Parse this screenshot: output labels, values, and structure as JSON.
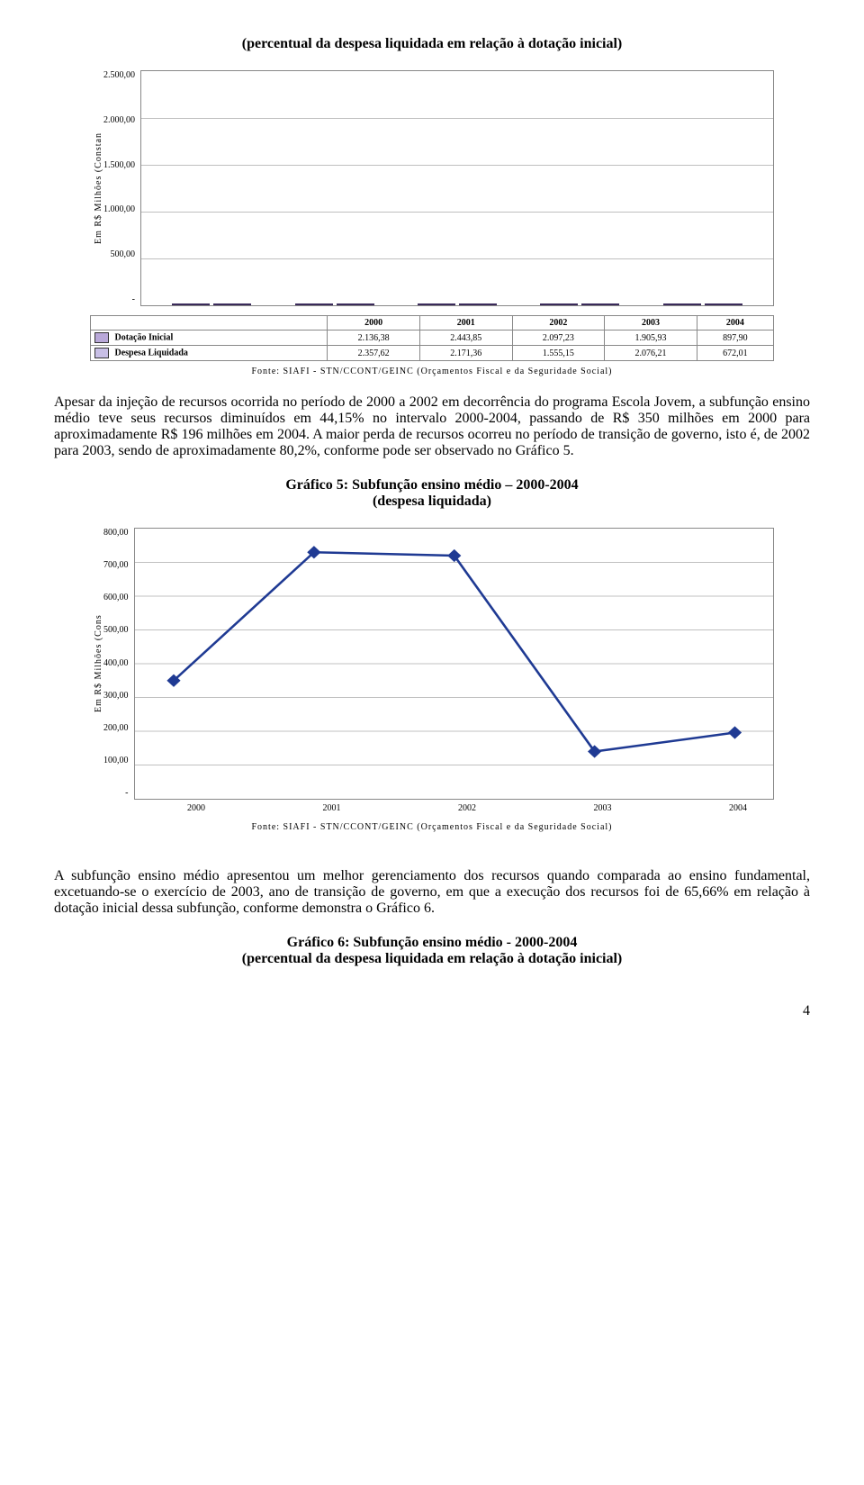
{
  "chart1": {
    "title": "(percentual da despesa liquidada em relação à dotação inicial)",
    "type": "bar",
    "y_axis_label": "Em R$ Milhões (Constan",
    "categories": [
      "2000",
      "2001",
      "2002",
      "2003",
      "2004"
    ],
    "series": [
      {
        "name": "Dotação Inicial",
        "color_light": "#b9a8d9",
        "color_dark": "#8c7bb8",
        "values": [
          "2.136,38",
          "2.443,85",
          "2.097,23",
          "1.905,93",
          "897,90"
        ],
        "numeric": [
          2136.38,
          2443.85,
          2097.23,
          1905.93,
          897.9
        ]
      },
      {
        "name": "Despesa Liquidada",
        "color_light": "#c8bfe6",
        "color_dark": "#9d91c9",
        "values": [
          "2.357,62",
          "2.171,36",
          "1.555,15",
          "2.076,21",
          "672,01"
        ],
        "numeric": [
          2357.62,
          2171.36,
          1555.15,
          2076.21,
          672.01
        ]
      }
    ],
    "yticks": [
      "2.500,00",
      "2.000,00",
      "1.500,00",
      "1.000,00",
      "500,00",
      "-"
    ],
    "ymax": 2500,
    "grid_color": "#c0c0c0",
    "background_color": "#ffffff",
    "source": "Fonte: SIAFI - STN/CCONT/GEINC (Orçamentos Fiscal e da Seguridade Social)"
  },
  "paragraph1": "Apesar da injeção de recursos ocorrida no período de 2000 a 2002 em decorrência do programa Escola Jovem, a subfunção ensino médio teve seus recursos diminuídos em 44,15% no intervalo 2000-2004, passando de R$ 350 milhões em 2000 para aproximadamente R$ 196 milhões em 2004. A maior perda de recursos ocorreu no período de transição de governo, isto é, de 2002 para 2003, sendo de aproximadamente 80,2%, conforme pode ser observado no Gráfico 5.",
  "chart2": {
    "title_line1": "Gráfico 5: Subfunção ensino médio – 2000-2004",
    "title_line2": "(despesa liquidada)",
    "type": "line",
    "y_axis_label": "Em R$ Milhões (Cons",
    "categories": [
      "2000",
      "2001",
      "2002",
      "2003",
      "2004"
    ],
    "values": [
      350,
      730,
      720,
      140,
      196
    ],
    "yticks": [
      "800,00",
      "700,00",
      "600,00",
      "500,00",
      "400,00",
      "300,00",
      "200,00",
      "100,00",
      "-"
    ],
    "ymax": 800,
    "line_color": "#1f3a93",
    "marker_color": "#1f3a93",
    "grid_color": "#c0c0c0",
    "background_color": "#ffffff",
    "source": "Fonte: SIAFI - STN/CCONT/GEINC (Orçamentos Fiscal e da Seguridade Social)"
  },
  "paragraph2": "A subfunção ensino médio apresentou um melhor gerenciamento dos recursos quando comparada ao ensino fundamental, excetuando-se o exercício de 2003, ano de transição de governo, em que a execução dos recursos foi de 65,66% em relação à dotação inicial dessa subfunção, conforme demonstra o Gráfico 6.",
  "chart3": {
    "title_line1": "Gráfico 6: Subfunção ensino médio - 2000-2004",
    "title_line2": "(percentual da despesa liquidada em relação à dotação inicial)"
  },
  "page_number": "4"
}
